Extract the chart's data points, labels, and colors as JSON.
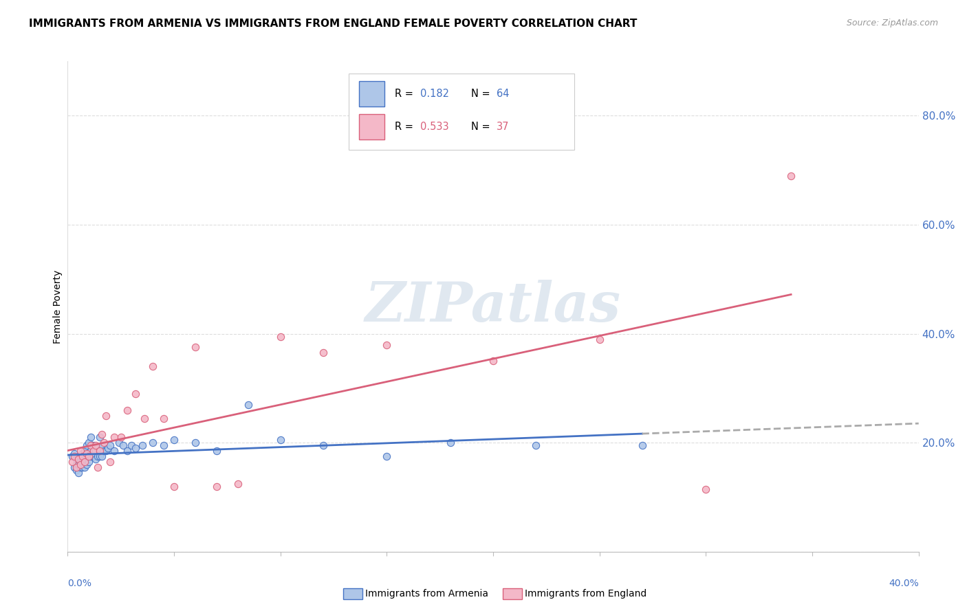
{
  "title": "IMMIGRANTS FROM ARMENIA VS IMMIGRANTS FROM ENGLAND FEMALE POVERTY CORRELATION CHART",
  "source": "Source: ZipAtlas.com",
  "ylabel": "Female Poverty",
  "y_ticks": [
    0.0,
    0.2,
    0.4,
    0.6,
    0.8
  ],
  "y_tick_labels": [
    "",
    "20.0%",
    "40.0%",
    "60.0%",
    "80.0%"
  ],
  "x_lim": [
    0.0,
    0.4
  ],
  "y_lim": [
    0.0,
    0.9
  ],
  "armenia_R": 0.182,
  "armenia_N": 64,
  "england_R": 0.533,
  "england_N": 37,
  "armenia_color": "#aec6e8",
  "england_color": "#f4b8c8",
  "armenia_line_color": "#4472c4",
  "england_line_color": "#d9607a",
  "watermark": "ZIPatlas",
  "armenia_scatter_x": [
    0.002,
    0.003,
    0.003,
    0.004,
    0.004,
    0.004,
    0.005,
    0.005,
    0.005,
    0.005,
    0.006,
    0.006,
    0.006,
    0.006,
    0.007,
    0.007,
    0.007,
    0.007,
    0.008,
    0.008,
    0.008,
    0.008,
    0.009,
    0.009,
    0.009,
    0.01,
    0.01,
    0.01,
    0.011,
    0.011,
    0.011,
    0.012,
    0.012,
    0.013,
    0.013,
    0.014,
    0.014,
    0.015,
    0.015,
    0.016,
    0.016,
    0.017,
    0.018,
    0.019,
    0.02,
    0.022,
    0.024,
    0.026,
    0.028,
    0.03,
    0.032,
    0.035,
    0.04,
    0.045,
    0.05,
    0.06,
    0.07,
    0.085,
    0.1,
    0.12,
    0.15,
    0.18,
    0.22,
    0.27
  ],
  "armenia_scatter_y": [
    0.175,
    0.18,
    0.155,
    0.17,
    0.16,
    0.15,
    0.165,
    0.175,
    0.16,
    0.145,
    0.17,
    0.155,
    0.165,
    0.175,
    0.16,
    0.17,
    0.155,
    0.18,
    0.155,
    0.165,
    0.17,
    0.185,
    0.16,
    0.175,
    0.195,
    0.165,
    0.18,
    0.2,
    0.175,
    0.185,
    0.21,
    0.175,
    0.195,
    0.17,
    0.185,
    0.175,
    0.19,
    0.175,
    0.21,
    0.175,
    0.195,
    0.185,
    0.185,
    0.19,
    0.195,
    0.185,
    0.2,
    0.195,
    0.185,
    0.195,
    0.19,
    0.195,
    0.2,
    0.195,
    0.205,
    0.2,
    0.185,
    0.27,
    0.205,
    0.195,
    0.175,
    0.2,
    0.195,
    0.195
  ],
  "england_scatter_x": [
    0.002,
    0.003,
    0.004,
    0.005,
    0.006,
    0.006,
    0.007,
    0.008,
    0.009,
    0.01,
    0.011,
    0.012,
    0.013,
    0.014,
    0.015,
    0.016,
    0.017,
    0.018,
    0.02,
    0.022,
    0.025,
    0.028,
    0.032,
    0.036,
    0.04,
    0.045,
    0.05,
    0.06,
    0.07,
    0.08,
    0.1,
    0.12,
    0.15,
    0.2,
    0.25,
    0.3,
    0.34
  ],
  "england_scatter_y": [
    0.165,
    0.175,
    0.155,
    0.17,
    0.16,
    0.185,
    0.175,
    0.165,
    0.18,
    0.175,
    0.195,
    0.185,
    0.195,
    0.155,
    0.185,
    0.215,
    0.2,
    0.25,
    0.165,
    0.21,
    0.21,
    0.26,
    0.29,
    0.245,
    0.34,
    0.245,
    0.12,
    0.375,
    0.12,
    0.125,
    0.395,
    0.365,
    0.38,
    0.35,
    0.39,
    0.115,
    0.69
  ]
}
